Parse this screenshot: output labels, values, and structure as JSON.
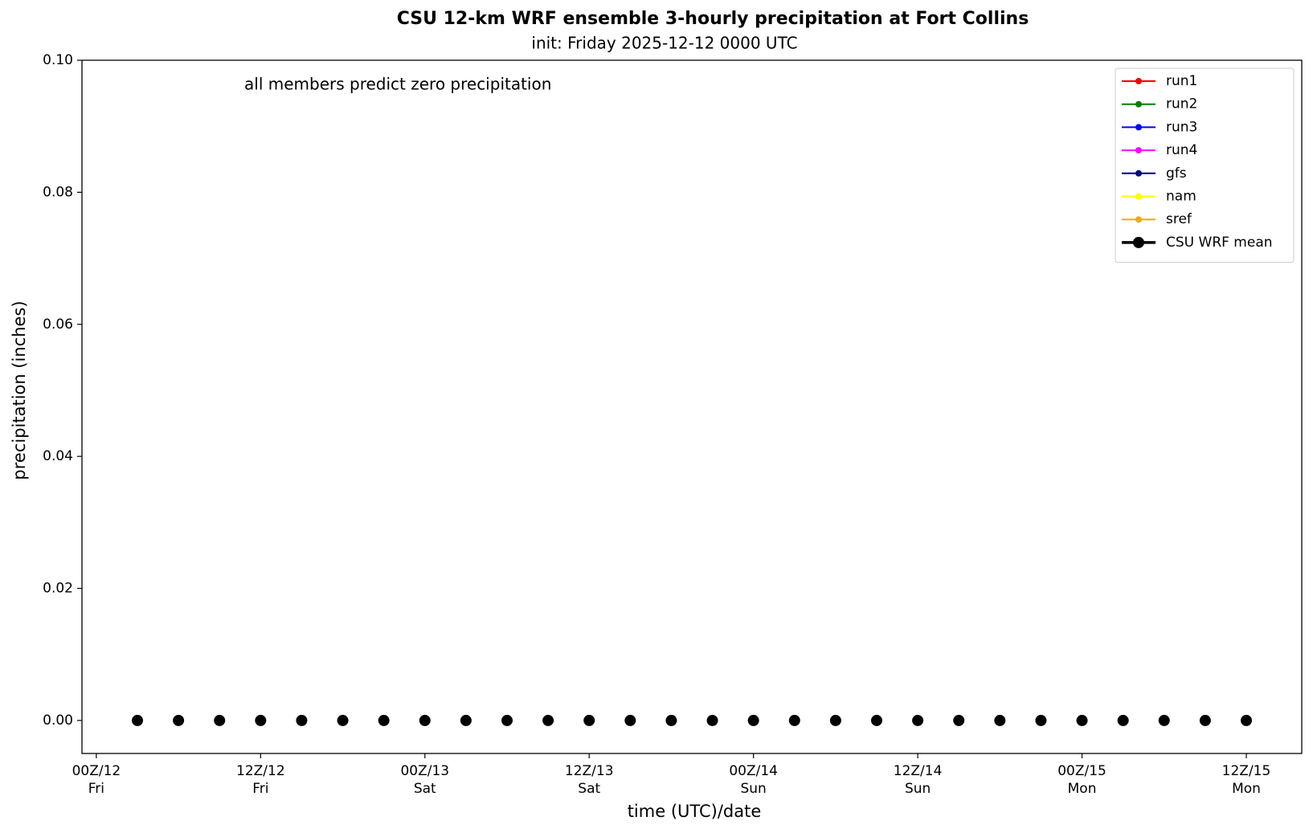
{
  "chart_data": {
    "type": "line",
    "title": "CSU 12-km WRF ensemble 3-hourly precipitation at Fort Collins",
    "subtitle": "init: Friday 2025-12-12 0000 UTC",
    "annotation": "all members predict zero precipitation",
    "xlabel": "time (UTC)/date",
    "ylabel": "precipitation (inches)",
    "x": [
      3,
      6,
      9,
      12,
      15,
      18,
      21,
      24,
      27,
      30,
      33,
      36,
      39,
      42,
      45,
      48,
      51,
      54,
      57,
      60,
      63,
      66,
      69,
      72,
      75,
      78,
      81,
      84
    ],
    "series": [
      {
        "name": "run1",
        "color": "#ff0000",
        "values": [
          0,
          0,
          0,
          0,
          0,
          0,
          0,
          0,
          0,
          0,
          0,
          0,
          0,
          0,
          0,
          0,
          0,
          0,
          0,
          0,
          0,
          0,
          0,
          0,
          0,
          0,
          0,
          0
        ]
      },
      {
        "name": "run2",
        "color": "#008000",
        "values": [
          0,
          0,
          0,
          0,
          0,
          0,
          0,
          0,
          0,
          0,
          0,
          0,
          0,
          0,
          0,
          0,
          0,
          0,
          0,
          0,
          0,
          0,
          0,
          0,
          0,
          0,
          0,
          0
        ]
      },
      {
        "name": "run3",
        "color": "#0000ff",
        "values": [
          0,
          0,
          0,
          0,
          0,
          0,
          0,
          0,
          0,
          0,
          0,
          0,
          0,
          0,
          0,
          0,
          0,
          0,
          0,
          0,
          0,
          0,
          0,
          0,
          0,
          0,
          0,
          0
        ]
      },
      {
        "name": "run4",
        "color": "#ff00ff",
        "values": [
          0,
          0,
          0,
          0,
          0,
          0,
          0,
          0,
          0,
          0,
          0,
          0,
          0,
          0,
          0,
          0,
          0,
          0,
          0,
          0,
          0,
          0,
          0,
          0,
          0,
          0,
          0,
          0
        ]
      },
      {
        "name": "gfs",
        "color": "#000080",
        "values": [
          0,
          0,
          0,
          0,
          0,
          0,
          0,
          0,
          0,
          0,
          0,
          0,
          0,
          0,
          0,
          0,
          0,
          0,
          0,
          0,
          0,
          0,
          0,
          0,
          0,
          0,
          0,
          0
        ]
      },
      {
        "name": "nam",
        "color": "#ffff00",
        "values": [
          0,
          0,
          0,
          0,
          0,
          0,
          0,
          0,
          0,
          0,
          0,
          0,
          0,
          0,
          0,
          0,
          0,
          0,
          0,
          0,
          0,
          0,
          0,
          0,
          0,
          0,
          0,
          0
        ]
      },
      {
        "name": "sref",
        "color": "#ffa500",
        "values": [
          0,
          0,
          0,
          0,
          0,
          0,
          0,
          0,
          0,
          0,
          0,
          0,
          0,
          0,
          0,
          0,
          0,
          0,
          0,
          0,
          0,
          0,
          0,
          0,
          0,
          0,
          0,
          0
        ]
      },
      {
        "name": "CSU WRF mean",
        "color": "#000000",
        "values": [
          0,
          0,
          0,
          0,
          0,
          0,
          0,
          0,
          0,
          0,
          0,
          0,
          0,
          0,
          0,
          0,
          0,
          0,
          0,
          0,
          0,
          0,
          0,
          0,
          0,
          0,
          0,
          0
        ]
      }
    ],
    "xlim": [
      -1.05,
      88.05
    ],
    "xticks": [
      {
        "value": 0,
        "label": [
          "00Z/12",
          "Fri"
        ]
      },
      {
        "value": 12,
        "label": [
          "12Z/12",
          "Fri"
        ]
      },
      {
        "value": 24,
        "label": [
          "00Z/13",
          "Sat"
        ]
      },
      {
        "value": 36,
        "label": [
          "12Z/13",
          "Sat"
        ]
      },
      {
        "value": 48,
        "label": [
          "00Z/14",
          "Sun"
        ]
      },
      {
        "value": 60,
        "label": [
          "12Z/14",
          "Sun"
        ]
      },
      {
        "value": 72,
        "label": [
          "00Z/15",
          "Mon"
        ]
      },
      {
        "value": 84,
        "label": [
          "12Z/15",
          "Mon"
        ]
      }
    ],
    "ylim": [
      -0.005,
      0.1
    ],
    "yticks": [
      {
        "value": 0,
        "label": "0.00"
      },
      {
        "value": 0.02,
        "label": "0.02"
      },
      {
        "value": 0.04,
        "label": "0.04"
      },
      {
        "value": 0.06,
        "label": "0.06"
      },
      {
        "value": 0.08,
        "label": "0.08"
      },
      {
        "value": 0.1,
        "label": "0.10"
      }
    ],
    "grid": false,
    "legend": "upper right"
  }
}
